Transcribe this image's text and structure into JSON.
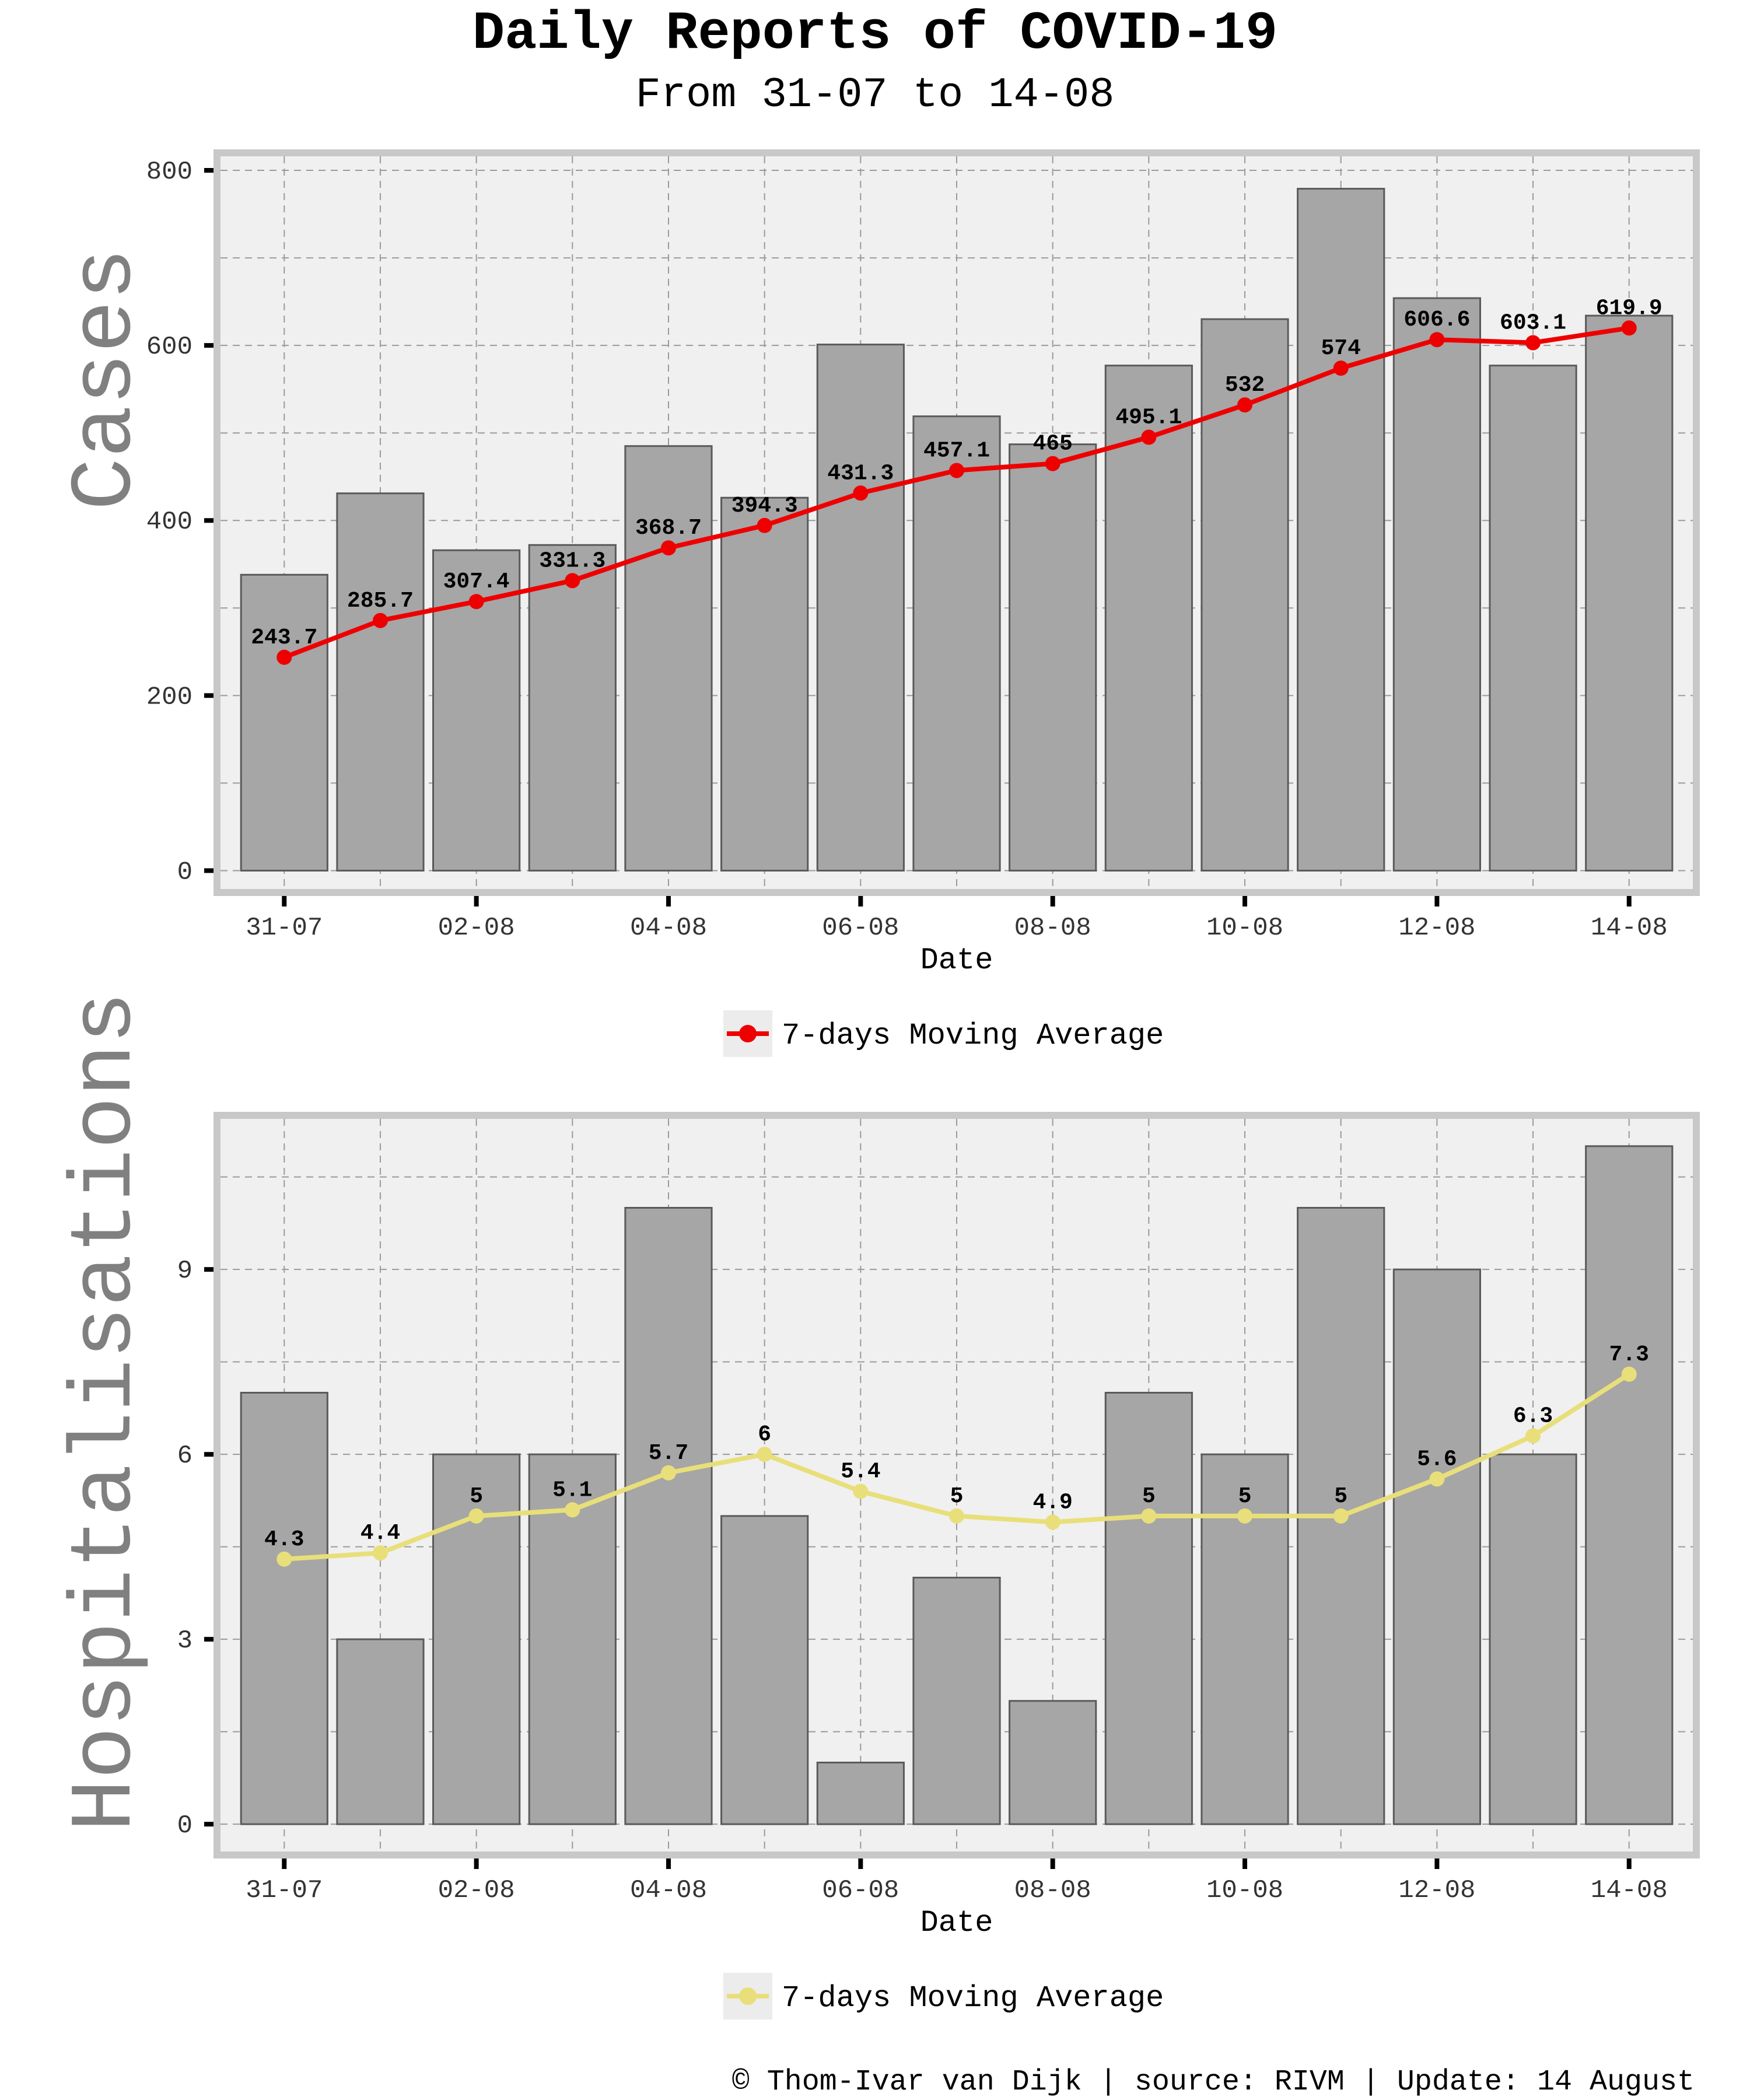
{
  "title": "Daily Reports of COVID-19",
  "subtitle": "From 31-07 to 14-08",
  "footer": "© Thom-Ivar van Dijk | source: RIVM | Update: 14 August",
  "colors": {
    "bar_fill": "#a6a6a6",
    "bar_stroke": "#5a5a5a",
    "panel_bg": "#f0f0f0",
    "panel_border": "#c8c8c8",
    "grid": "#9a9a9a",
    "cases_line": "#ee0000",
    "hosp_line": "#e8df7a",
    "side_label": "#808080"
  },
  "chart_data": [
    {
      "type": "bar",
      "name": "cases",
      "side_label": "Cases",
      "xlabel": "Date",
      "ylabel": "Cases",
      "categories": [
        "31-07",
        "01-08",
        "02-08",
        "03-08",
        "04-08",
        "05-08",
        "06-08",
        "07-08",
        "08-08",
        "09-08",
        "10-08",
        "11-08",
        "12-08",
        "13-08",
        "14-08"
      ],
      "xtick_labels": [
        "31-07",
        "02-08",
        "04-08",
        "06-08",
        "08-08",
        "10-08",
        "12-08",
        "14-08"
      ],
      "values": [
        338,
        431,
        366,
        372,
        485,
        426,
        601,
        519,
        487,
        577,
        630,
        779,
        654,
        577,
        634
      ],
      "line_series": {
        "name": "7-days Moving Average",
        "values": [
          243.7,
          285.7,
          307.4,
          331.3,
          368.7,
          394.3,
          431.3,
          457.1,
          465,
          495.1,
          532,
          574,
          606.6,
          603.1,
          619.9
        ],
        "labels": [
          "243.7",
          "285.7",
          "307.4",
          "331.3",
          "368.7",
          "394.3",
          "431.3",
          "457.1",
          "465",
          "495.1",
          "532",
          "574",
          "606.6",
          "603.1",
          "619.9"
        ]
      },
      "ylim": [
        -25,
        820
      ],
      "yticks": [
        0,
        200,
        400,
        600,
        800
      ],
      "legend": "7-days Moving Average",
      "legend_position": "bottom",
      "grid": true
    },
    {
      "type": "bar",
      "name": "hospitalisations",
      "side_label": "Hospitalisations",
      "xlabel": "Date",
      "ylabel": "Hospitalisations",
      "categories": [
        "31-07",
        "01-08",
        "02-08",
        "03-08",
        "04-08",
        "05-08",
        "06-08",
        "07-08",
        "08-08",
        "09-08",
        "10-08",
        "11-08",
        "12-08",
        "13-08",
        "14-08"
      ],
      "xtick_labels": [
        "31-07",
        "02-08",
        "04-08",
        "06-08",
        "08-08",
        "10-08",
        "12-08",
        "14-08"
      ],
      "values": [
        7,
        3,
        6,
        6,
        10,
        5,
        1,
        4,
        2,
        7,
        6,
        10,
        9,
        6,
        11
      ],
      "line_series": {
        "name": "7-days Moving Average",
        "values": [
          4.3,
          4.4,
          5,
          5.1,
          5.7,
          6,
          5.4,
          5,
          4.9,
          5,
          5,
          5,
          5.6,
          6.3,
          7.3
        ],
        "labels": [
          "4.3",
          "4.4",
          "5",
          "5.1",
          "5.7",
          "6",
          "5.4",
          "5",
          "4.9",
          "5",
          "5",
          "5",
          "5.6",
          "6.3",
          "7.3"
        ]
      },
      "ylim": [
        -0.5,
        11.5
      ],
      "yticks": [
        0,
        3,
        6,
        9
      ],
      "legend": "7-days Moving Average",
      "legend_position": "bottom",
      "grid": true
    }
  ]
}
